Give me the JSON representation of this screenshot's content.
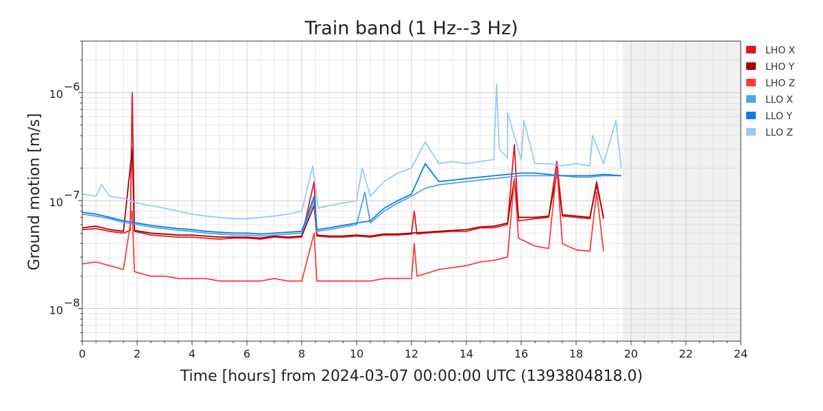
{
  "chart_data": {
    "type": "line",
    "title": "Train band (1 Hz--3 Hz)",
    "xlabel": "Time [hours] from 2024-03-07 00:00:00 UTC (1393804818.0)",
    "ylabel": "Ground motion [m/s]",
    "xlim": [
      0,
      24
    ],
    "ylim": [
      5e-09,
      3e-06
    ],
    "yscale": "log",
    "x_ticks": [
      0,
      2,
      4,
      6,
      8,
      10,
      12,
      14,
      16,
      18,
      20,
      22,
      24
    ],
    "x_tick_labels": [
      "0",
      "2",
      "4",
      "6",
      "8",
      "10",
      "12",
      "14",
      "16",
      "18",
      "20",
      "22",
      "24"
    ],
    "y_ticks": [
      {
        "value": 1e-08,
        "base": "10",
        "exp": "−8"
      },
      {
        "value": 1e-07,
        "base": "10",
        "exp": "−7"
      },
      {
        "value": 1e-06,
        "base": "10",
        "exp": "−6"
      }
    ],
    "grid": true,
    "legend_position": "outside-right",
    "future_shaded_region": [
      19.7,
      24
    ],
    "series": [
      {
        "name": "LHO X",
        "color": "#e8141d",
        "points": [
          [
            0,
            5.4e-08
          ],
          [
            0.5,
            5.5e-08
          ],
          [
            1.0,
            5.2e-08
          ],
          [
            1.5,
            5e-08
          ],
          [
            1.75,
            5.3e-08
          ],
          [
            1.82,
            1e-06
          ],
          [
            1.9,
            5.2e-08
          ],
          [
            2.5,
            4.8e-08
          ],
          [
            3,
            4.7e-08
          ],
          [
            3.5,
            4.6e-08
          ],
          [
            4,
            4.6e-08
          ],
          [
            4.5,
            4.5e-08
          ],
          [
            5,
            4.4e-08
          ],
          [
            5.5,
            4.5e-08
          ],
          [
            6,
            4.5e-08
          ],
          [
            6.5,
            4.4e-08
          ],
          [
            7,
            4.6e-08
          ],
          [
            7.5,
            4.5e-08
          ],
          [
            8,
            4.6e-08
          ],
          [
            8.45,
            1.5e-07
          ],
          [
            8.55,
            4.7e-08
          ],
          [
            9,
            4.6e-08
          ],
          [
            9.5,
            4.6e-08
          ],
          [
            10,
            4.7e-08
          ],
          [
            10.5,
            4.6e-08
          ],
          [
            11,
            4.8e-08
          ],
          [
            11.5,
            4.8e-08
          ],
          [
            12,
            4.9e-08
          ],
          [
            12.1,
            8e-08
          ],
          [
            12.2,
            4.9e-08
          ],
          [
            12.5,
            5e-08
          ],
          [
            13,
            5.1e-08
          ],
          [
            13.5,
            5.2e-08
          ],
          [
            14,
            5.2e-08
          ],
          [
            14.5,
            5.6e-08
          ],
          [
            15,
            5.6e-08
          ],
          [
            15.5,
            6e-08
          ],
          [
            15.75,
            3.3e-07
          ],
          [
            15.9,
            6.5e-08
          ],
          [
            16.5,
            6.8e-08
          ],
          [
            17,
            7e-08
          ],
          [
            17.3,
            2.3e-07
          ],
          [
            17.5,
            7.2e-08
          ],
          [
            18,
            7e-08
          ],
          [
            18.5,
            6.8e-08
          ],
          [
            18.75,
            1.5e-07
          ],
          [
            19,
            6.8e-08
          ]
        ]
      },
      {
        "name": "LHO Y",
        "color": "#a50000",
        "points": [
          [
            0,
            5.6e-08
          ],
          [
            0.5,
            5.8e-08
          ],
          [
            1.0,
            5.4e-08
          ],
          [
            1.5,
            5.2e-08
          ],
          [
            1.82,
            3e-07
          ],
          [
            1.9,
            5.3e-08
          ],
          [
            2.5,
            5e-08
          ],
          [
            3,
            4.9e-08
          ],
          [
            3.5,
            4.8e-08
          ],
          [
            4,
            4.8e-08
          ],
          [
            4.5,
            4.7e-08
          ],
          [
            5,
            4.6e-08
          ],
          [
            5.5,
            4.6e-08
          ],
          [
            6,
            4.6e-08
          ],
          [
            6.5,
            4.5e-08
          ],
          [
            7,
            4.7e-08
          ],
          [
            7.5,
            4.6e-08
          ],
          [
            8,
            4.7e-08
          ],
          [
            8.45,
            9e-08
          ],
          [
            8.55,
            4.8e-08
          ],
          [
            9,
            4.7e-08
          ],
          [
            9.5,
            4.7e-08
          ],
          [
            10,
            4.8e-08
          ],
          [
            10.5,
            4.7e-08
          ],
          [
            11,
            4.9e-08
          ],
          [
            11.5,
            4.9e-08
          ],
          [
            12,
            5e-08
          ],
          [
            12.5,
            5.1e-08
          ],
          [
            13,
            5.2e-08
          ],
          [
            13.5,
            5.3e-08
          ],
          [
            14,
            5.4e-08
          ],
          [
            14.5,
            5.7e-08
          ],
          [
            15,
            5.8e-08
          ],
          [
            15.5,
            6.2e-08
          ],
          [
            15.75,
            1.6e-07
          ],
          [
            15.9,
            7e-08
          ],
          [
            16.5,
            7e-08
          ],
          [
            17,
            7.2e-08
          ],
          [
            17.3,
            1.8e-07
          ],
          [
            17.5,
            7.4e-08
          ],
          [
            18,
            7.2e-08
          ],
          [
            18.5,
            7e-08
          ],
          [
            18.75,
            1.4e-07
          ],
          [
            19,
            7e-08
          ]
        ]
      },
      {
        "name": "LHO Z",
        "color": "#ff3b3b",
        "points": [
          [
            0,
            2.6e-08
          ],
          [
            0.5,
            2.7e-08
          ],
          [
            1.0,
            2.5e-08
          ],
          [
            1.5,
            2.3e-08
          ],
          [
            1.82,
            8e-08
          ],
          [
            1.9,
            2.2e-08
          ],
          [
            2.5,
            2e-08
          ],
          [
            3,
            2e-08
          ],
          [
            3.5,
            1.9e-08
          ],
          [
            4,
            1.9e-08
          ],
          [
            4.5,
            1.9e-08
          ],
          [
            5,
            1.8e-08
          ],
          [
            5.5,
            1.8e-08
          ],
          [
            6,
            1.8e-08
          ],
          [
            6.5,
            1.8e-08
          ],
          [
            7,
            1.9e-08
          ],
          [
            7.5,
            1.8e-08
          ],
          [
            8,
            1.8e-08
          ],
          [
            8.45,
            5e-08
          ],
          [
            8.55,
            1.8e-08
          ],
          [
            9,
            1.8e-08
          ],
          [
            9.5,
            1.8e-08
          ],
          [
            10,
            1.8e-08
          ],
          [
            10.5,
            1.8e-08
          ],
          [
            11,
            1.9e-08
          ],
          [
            11.5,
            1.9e-08
          ],
          [
            12,
            1.9e-08
          ],
          [
            12.1,
            4e-08
          ],
          [
            12.2,
            2e-08
          ],
          [
            12.5,
            2.1e-08
          ],
          [
            13,
            2.3e-08
          ],
          [
            13.5,
            2.4e-08
          ],
          [
            14,
            2.5e-08
          ],
          [
            14.5,
            2.7e-08
          ],
          [
            15,
            2.8e-08
          ],
          [
            15.5,
            3e-08
          ],
          [
            15.75,
            1.6e-07
          ],
          [
            15.9,
            4.5e-08
          ],
          [
            16.5,
            3.8e-08
          ],
          [
            17,
            3.6e-08
          ],
          [
            17.3,
            2e-07
          ],
          [
            17.5,
            4e-08
          ],
          [
            18,
            3.5e-08
          ],
          [
            18.5,
            3.4e-08
          ],
          [
            18.75,
            1.2e-07
          ],
          [
            19,
            3.4e-08
          ]
        ]
      },
      {
        "name": "LLO X",
        "color": "#4aa3ef",
        "points": [
          [
            0,
            7.5e-08
          ],
          [
            0.5,
            7.2e-08
          ],
          [
            1.0,
            6.8e-08
          ],
          [
            1.5,
            6.3e-08
          ],
          [
            2.0,
            6e-08
          ],
          [
            2.5,
            5.7e-08
          ],
          [
            3,
            5.5e-08
          ],
          [
            3.5,
            5.3e-08
          ],
          [
            4,
            5.2e-08
          ],
          [
            4.5,
            5e-08
          ],
          [
            5,
            4.9e-08
          ],
          [
            5.5,
            4.8e-08
          ],
          [
            6,
            4.8e-08
          ],
          [
            6.5,
            4.7e-08
          ],
          [
            7,
            4.8e-08
          ],
          [
            7.5,
            4.9e-08
          ],
          [
            8,
            5e-08
          ],
          [
            8.45,
            1e-07
          ],
          [
            8.55,
            5.2e-08
          ],
          [
            9,
            5.4e-08
          ],
          [
            9.5,
            5.7e-08
          ],
          [
            10,
            6e-08
          ],
          [
            10.3,
            1.2e-07
          ],
          [
            10.5,
            6.2e-08
          ],
          [
            11,
            8e-08
          ],
          [
            11.5,
            9.5e-08
          ],
          [
            12,
            1.1e-07
          ],
          [
            12.5,
            1.3e-07
          ],
          [
            13,
            1.4e-07
          ],
          [
            13.5,
            1.45e-07
          ],
          [
            14,
            1.5e-07
          ],
          [
            14.5,
            1.55e-07
          ],
          [
            15,
            1.6e-07
          ],
          [
            15.5,
            1.65e-07
          ],
          [
            16,
            1.7e-07
          ],
          [
            16.5,
            1.7e-07
          ],
          [
            17,
            1.7e-07
          ],
          [
            17.5,
            1.7e-07
          ],
          [
            18,
            1.65e-07
          ],
          [
            18.5,
            1.65e-07
          ],
          [
            19,
            1.7e-07
          ],
          [
            19.65,
            1.7e-07
          ]
        ]
      },
      {
        "name": "LLO Y",
        "color": "#0a7bea",
        "points": [
          [
            0,
            7.8e-08
          ],
          [
            0.5,
            7.5e-08
          ],
          [
            1.0,
            7e-08
          ],
          [
            1.5,
            6.5e-08
          ],
          [
            2.0,
            6.2e-08
          ],
          [
            2.5,
            5.9e-08
          ],
          [
            3,
            5.7e-08
          ],
          [
            3.5,
            5.5e-08
          ],
          [
            4,
            5.4e-08
          ],
          [
            4.5,
            5.2e-08
          ],
          [
            5,
            5.1e-08
          ],
          [
            5.5,
            5e-08
          ],
          [
            6,
            5e-08
          ],
          [
            6.5,
            4.9e-08
          ],
          [
            7,
            5e-08
          ],
          [
            7.5,
            5.1e-08
          ],
          [
            8,
            5.2e-08
          ],
          [
            8.45,
            1.1e-07
          ],
          [
            8.55,
            5.4e-08
          ],
          [
            9,
            5.6e-08
          ],
          [
            9.5,
            5.9e-08
          ],
          [
            10,
            6.2e-08
          ],
          [
            10.5,
            6.5e-08
          ],
          [
            11,
            8.5e-08
          ],
          [
            11.5,
            1e-07
          ],
          [
            12,
            1.15e-07
          ],
          [
            12.5,
            2.2e-07
          ],
          [
            13,
            1.5e-07
          ],
          [
            13.5,
            1.55e-07
          ],
          [
            14,
            1.6e-07
          ],
          [
            14.5,
            1.65e-07
          ],
          [
            15,
            1.7e-07
          ],
          [
            15.5,
            1.75e-07
          ],
          [
            16,
            1.8e-07
          ],
          [
            16.5,
            1.8e-07
          ],
          [
            17,
            1.75e-07
          ],
          [
            17.5,
            1.7e-07
          ],
          [
            18,
            1.7e-07
          ],
          [
            18.5,
            1.7e-07
          ],
          [
            19,
            1.75e-07
          ],
          [
            19.65,
            1.7e-07
          ]
        ]
      },
      {
        "name": "LLO Z",
        "color": "#99c9f6",
        "points": [
          [
            0,
            1.15e-07
          ],
          [
            0.5,
            1.1e-07
          ],
          [
            0.7,
            1.4e-07
          ],
          [
            1.0,
            1.1e-07
          ],
          [
            1.5,
            1.05e-07
          ],
          [
            2.0,
            9.5e-08
          ],
          [
            2.5,
            9e-08
          ],
          [
            3,
            8.5e-08
          ],
          [
            3.5,
            8e-08
          ],
          [
            4,
            7.5e-08
          ],
          [
            4.5,
            7.2e-08
          ],
          [
            5,
            7e-08
          ],
          [
            5.5,
            6.8e-08
          ],
          [
            6,
            6.8e-08
          ],
          [
            6.5,
            7e-08
          ],
          [
            7,
            7.2e-08
          ],
          [
            7.5,
            7.5e-08
          ],
          [
            8,
            8e-08
          ],
          [
            8.4,
            2.1e-07
          ],
          [
            8.6,
            8.5e-08
          ],
          [
            9,
            9e-08
          ],
          [
            9.5,
            9.5e-08
          ],
          [
            10,
            1e-07
          ],
          [
            10.2,
            2e-07
          ],
          [
            10.5,
            1.1e-07
          ],
          [
            11,
            1.5e-07
          ],
          [
            11.5,
            1.8e-07
          ],
          [
            12,
            2e-07
          ],
          [
            12.5,
            3.5e-07
          ],
          [
            13,
            2.2e-07
          ],
          [
            13.5,
            2.3e-07
          ],
          [
            14,
            2.2e-07
          ],
          [
            14.5,
            2.3e-07
          ],
          [
            15,
            2.4e-07
          ],
          [
            15.1,
            1.2e-06
          ],
          [
            15.2,
            3e-07
          ],
          [
            15.5,
            2.5e-07
          ],
          [
            15.5,
            6.5e-07
          ],
          [
            16,
            2.4e-07
          ],
          [
            16.1,
            5.5e-07
          ],
          [
            16.5,
            2.2e-07
          ],
          [
            17,
            2.2e-07
          ],
          [
            17.5,
            2.1e-07
          ],
          [
            18,
            2.2e-07
          ],
          [
            18.5,
            2.1e-07
          ],
          [
            18.6,
            4e-07
          ],
          [
            19,
            2.2e-07
          ],
          [
            19.45,
            5.5e-07
          ],
          [
            19.65,
            2e-07
          ]
        ]
      }
    ]
  }
}
